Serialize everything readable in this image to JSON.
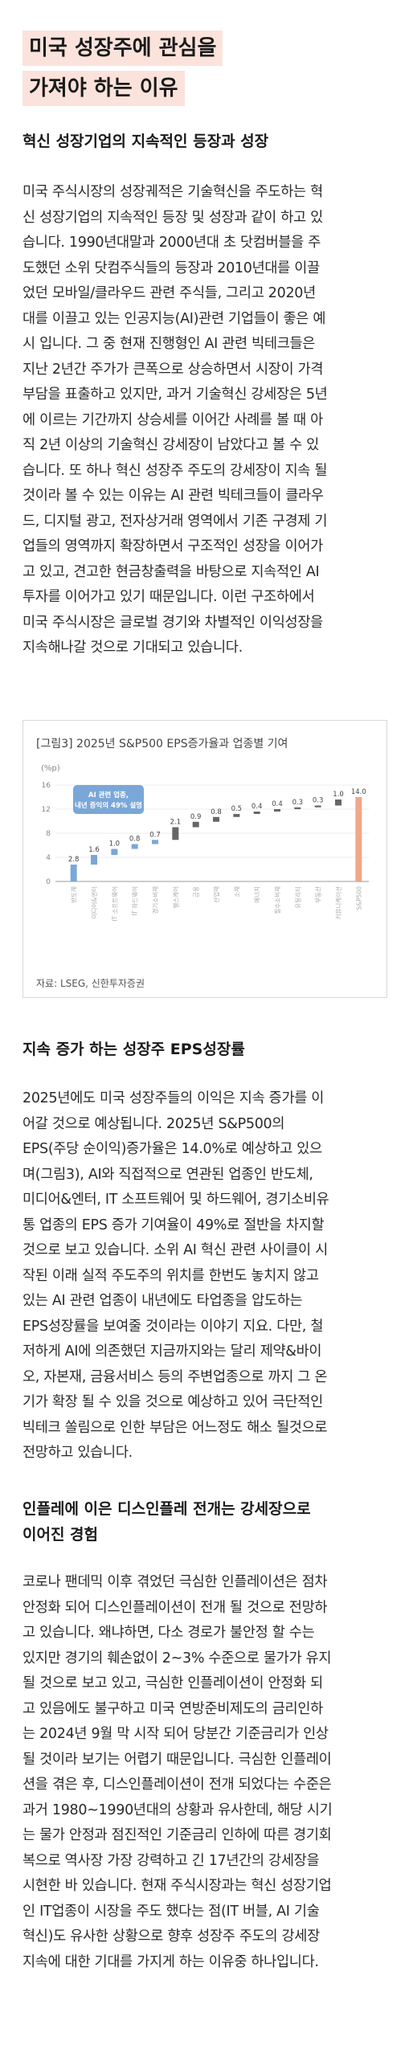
{
  "title": {
    "line1": "미국 성장주에 관심을",
    "line2": "가져야 하는 이유"
  },
  "section1": {
    "heading": "혁신 성장기업의 지속적인 등장과 성장",
    "lines": [
      "미국 주식시장의 성장궤적은 기술혁신을 주도하는 혁",
      "신 성장기업의 지속적인 등장 및 성장과 같이 하고 있",
      "습니다. 1990년대말과 2000년대 초 닷컴버블을 주",
      "도했던 소위 닷컴주식들의 등장과 2010년대를 이끌",
      "었던 모바일/클라우드 관련 주식들, 그리고 2020년",
      "대를 이끌고 있는 인공지능(AI)관련 기업들이 좋은 예",
      "시 입니다. 그 중 현재 진행형인 AI 관련 빅테크들은",
      "지난 2년간 주가가 큰폭으로 상승하면서 시장이 가격",
      "부담을 표출하고 있지만, 과거 기술혁신 강세장은 5년",
      "에 이르는 기간까지 상승세를 이어간 사례를 볼 때 아",
      "직 2년 이상의 기술혁신 강세장이 남았다고 볼 수 있",
      "습니다. 또 하나 혁신 성장주 주도의 강세장이 지속 될",
      "것이라 볼 수 있는 이유는 AI 관련 빅테크들이 클라우",
      "드, 디지털 광고, 전자상거래 영역에서 기존 구경제 기",
      "업들의 영역까지 확장하면서 구조적인 성장을 이어가",
      "고 있고, 견고한 현금창출력을 바탕으로 지속적인 AI",
      "투자를 이어가고 있기 때문입니다. 이런 구조하에서",
      "미국 주식시장은 글로벌 경기와 차별적인 이익성장을",
      "지속해나갈 것으로 기대되고 있습니다."
    ]
  },
  "chart_data": {
    "type": "bar",
    "title": "[그림3] 2025년 S&P500 EPS증가율과 업종별 기여",
    "ylabel": "(%p)",
    "ylim": [
      0,
      16
    ],
    "yticks": [
      0,
      4,
      8,
      12,
      16
    ],
    "annotation": "AI 관련 업종,\n내년 증익의 49% 설명",
    "source": "자료: LSEG, 신한투자증권",
    "categories": [
      "반도체",
      "미디어&엔터",
      "IT 소프트웨어",
      "IT 하드웨어",
      "경기소비재",
      "헬스케어",
      "금융",
      "산업재",
      "소재",
      "에너지",
      "필수소비재",
      "유틸리티",
      "부동산",
      "커뮤니케이션",
      "S&P500"
    ],
    "values": [
      2.8,
      1.6,
      1.0,
      0.8,
      0.7,
      2.1,
      0.9,
      0.8,
      0.5,
      0.4,
      0.4,
      0.3,
      0.3,
      1.0,
      14.0
    ],
    "value_labels": [
      "2.8",
      "1.6",
      "1.0",
      "0.8",
      "0.7",
      "2.1",
      "0.9",
      "0.8",
      "0.5",
      "0.4",
      "0.4",
      "0.3",
      "0.3",
      "1.0",
      "14.0"
    ],
    "colors": {
      "ai": "#7aa7d8",
      "other": "#666666",
      "total": "#f0a78a"
    }
  },
  "section2": {
    "heading": "지속 증가 하는 성장주 EPS성장률",
    "lines": [
      "2025년에도 미국 성장주들의 이익은 지속 증가를 이",
      "어갈 것으로 예상됩니다. 2025년 S&P500의",
      "EPS(주당 순이익)증가율은 14.0%로 예상하고 있으",
      "며(그림3), AI와 직접적으로 연관된 업종인 반도체,",
      "미디어&엔터, IT 소프트웨어 및 하드웨어, 경기소비유",
      "통 업종의 EPS 증가 기여율이 49%로 절반을 차지할",
      "것으로 보고 있습니다. 소위 AI 혁신 관련 사이클이 시",
      "작된 이래 실적 주도주의 위치를 한번도 놓치지 않고",
      "있는 AI 관련 업종이 내년에도 타업종을 압도하는",
      "EPS성장률을 보여줄 것이라는 이야기 지요. 다만, 철",
      "저하게 AI에 의존했던 지금까지와는 달리 제약&바이",
      "오, 자본재, 금융서비스 등의 주변업종으로 까지 그 온",
      "기가 확장 될 수 있을 것으로 예상하고 있어 극단적인",
      "빅테크 쏠림으로 인한 부담은 어느정도 해소 될것으로",
      "전망하고 있습니다."
    ]
  },
  "section3": {
    "heading_line1": "인플레에 이은 디스인플레 전개는 강세장으로",
    "heading_line2": "이어진 경험",
    "lines": [
      "코로나 팬데믹 이후 겪었던 극심한 인플레이션은 점차",
      "안정화 되어 디스인플레이션이 전개 될 것으로 전망하",
      "고 있습니다. 왜냐하면, 다소 경로가 불안정 할 수는",
      "있지만 경기의 훼손없이 2~3% 수준으로 물가가 유지",
      "될 것으로 보고 있고, 극심한 인플레이션이 안정화 되",
      "고 있음에도 불구하고 미국 연방준비제도의 금리인하",
      "는 2024년 9월 막 시작 되어 당분간 기준금리가 인상",
      "될 것이라 보기는 어렵기 때문입니다. 극심한 인플레이",
      "션을 겪은 후, 디스인플레이션이 전개 되었다는 수준은",
      "과거 1980~1990년대의 상황과 유사한데, 해당 시기",
      "는 물가 안정과 점진적인 기준금리 인하에 따른 경기회",
      "복으로 역사장 가장 강력하고 긴 17년간의 강세장을",
      "시현한 바 있습니다. 현재 주식시장과는 혁신 성장기업",
      "인 IT업종이 시장을 주도 했다는 점(IT 버블, AI 기술",
      "혁신)도 유사한 상황으로 향후 성장주 주도의 강세장",
      "지속에 대한 기대를 가지게 하는 이유중 하나입니다."
    ]
  }
}
